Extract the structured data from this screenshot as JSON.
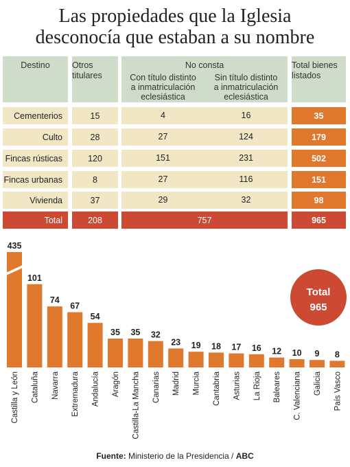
{
  "title": {
    "line1": "Las propiedades que la Iglesia",
    "line2": "desconocía que estaban a su nombre"
  },
  "table": {
    "headers": {
      "destino": "Destino",
      "otros_1": "Otros",
      "otros_2": "titulares",
      "no_consta": "No consta",
      "con_1": "Con título distinto",
      "con_2": "a inmatriculación",
      "con_3": "eclesiástica",
      "sin_1": "Sin título distinto",
      "sin_2": "a inmatriculación",
      "sin_3": "eclesiástica",
      "total_1": "Total bienes",
      "total_2": "listados"
    },
    "rows": [
      {
        "destino": "Cementerios",
        "otros": "15",
        "con": "4",
        "sin": "16",
        "total": "35"
      },
      {
        "destino": "Culto",
        "otros": "28",
        "con": "27",
        "sin": "124",
        "total": "179"
      },
      {
        "destino": "Fincas rústicas",
        "otros": "120",
        "con": "151",
        "sin": "231",
        "total": "502"
      },
      {
        "destino": "Fincas urbanas",
        "otros": "8",
        "con": "27",
        "sin": "116",
        "total": "151"
      },
      {
        "destino": "Vivienda",
        "otros": "37",
        "con": "29",
        "sin": "32",
        "total": "98"
      }
    ],
    "total_row": {
      "label": "Total",
      "otros": "208",
      "no_consta": "757",
      "total": "965"
    }
  },
  "chart_data": {
    "type": "bar",
    "title": "",
    "xlabel": "",
    "ylabel": "",
    "broken_axis": true,
    "categories": [
      "Castilla y León",
      "Cataluña",
      "Navarra",
      "Extremadura",
      "Andalucía",
      "Aragón",
      "Castilla-La Mancha",
      "Canarias",
      "Madrid",
      "Murcia",
      "Cantabria",
      "Asturias",
      "La Rioja",
      "Baleares",
      "C. Valenciana",
      "Galicia",
      "País Vasco"
    ],
    "values": [
      435,
      101,
      74,
      67,
      54,
      35,
      35,
      32,
      23,
      19,
      18,
      17,
      16,
      12,
      10,
      9,
      8
    ],
    "total_badge": {
      "label": "Total",
      "value": "965"
    }
  },
  "colors": {
    "bar": "#e0782d",
    "header_bg": "#cfdcc9",
    "row_bg": "#f1e7c5",
    "total_bg": "#cc4a33"
  },
  "source": {
    "label": "Fuente:",
    "text": "Ministerio de la Presidencia / ",
    "outlet": "ABC"
  }
}
